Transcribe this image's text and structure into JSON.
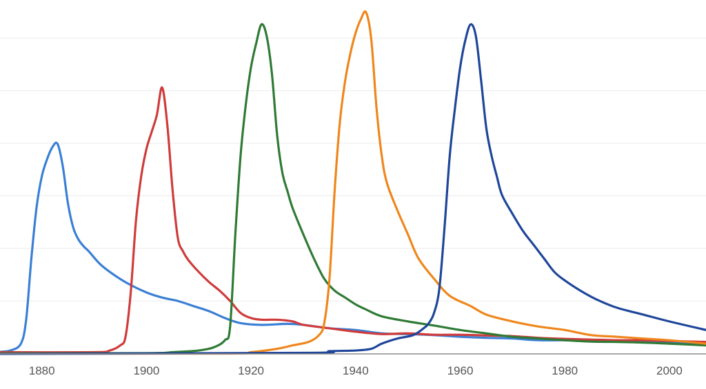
{
  "chart_data": {
    "type": "line",
    "title": "",
    "xlabel": "",
    "ylabel": "",
    "xlim": [
      1872,
      2007
    ],
    "ylim": [
      0,
      100
    ],
    "x_ticks": [
      1880,
      1900,
      1920,
      1940,
      1960,
      1980,
      2000
    ],
    "x_tick_labels": [
      "1880",
      "1900",
      "1920",
      "1940",
      "1960",
      "1980",
      "2000"
    ],
    "y_gridlines": [
      15.5,
      30.9,
      46.3,
      61.7,
      77.1,
      92.5
    ],
    "grid": true,
    "legend": "none",
    "series": [
      {
        "color": "#3a7fd5",
        "points": [
          [
            1872,
            0.6
          ],
          [
            1874,
            1.0
          ],
          [
            1876,
            3.0
          ],
          [
            1877,
            10.0
          ],
          [
            1878,
            28.0
          ],
          [
            1879,
            43.0
          ],
          [
            1880,
            52.0
          ],
          [
            1881,
            57.0
          ],
          [
            1882,
            60.5
          ],
          [
            1883,
            61.5
          ],
          [
            1884,
            55.0
          ],
          [
            1885,
            44.0
          ],
          [
            1886,
            37.0
          ],
          [
            1887,
            33.5
          ],
          [
            1888,
            31.5
          ],
          [
            1889,
            30.0
          ],
          [
            1891,
            26.5
          ],
          [
            1893,
            24.0
          ],
          [
            1896,
            21.0
          ],
          [
            1900,
            18.0
          ],
          [
            1903,
            16.5
          ],
          [
            1906,
            15.5
          ],
          [
            1909,
            14.0
          ],
          [
            1912,
            12.5
          ],
          [
            1915,
            10.5
          ],
          [
            1918,
            9.0
          ],
          [
            1922,
            8.5
          ],
          [
            1927,
            8.8
          ],
          [
            1930,
            8.5
          ],
          [
            1935,
            7.5
          ],
          [
            1940,
            7.0
          ],
          [
            1945,
            6.0
          ],
          [
            1950,
            5.8
          ],
          [
            1955,
            5.5
          ],
          [
            1960,
            5.0
          ],
          [
            1965,
            4.7
          ],
          [
            1970,
            4.5
          ],
          [
            1975,
            4.0
          ],
          [
            1980,
            4.0
          ],
          [
            1985,
            3.8
          ],
          [
            1990,
            3.7
          ],
          [
            1995,
            3.5
          ],
          [
            2000,
            3.3
          ],
          [
            2007,
            3.0
          ]
        ]
      },
      {
        "color": "#cf3b3b",
        "points": [
          [
            1872,
            0.5
          ],
          [
            1890,
            0.5
          ],
          [
            1893,
            1.0
          ],
          [
            1895,
            2.5
          ],
          [
            1896,
            5.0
          ],
          [
            1897,
            18.0
          ],
          [
            1898,
            39.0
          ],
          [
            1899,
            52.0
          ],
          [
            1900,
            60.0
          ],
          [
            1901,
            65.0
          ],
          [
            1902,
            70.0
          ],
          [
            1903,
            78.0
          ],
          [
            1904,
            67.0
          ],
          [
            1905,
            48.0
          ],
          [
            1906,
            34.0
          ],
          [
            1907,
            30.0
          ],
          [
            1908,
            27.5
          ],
          [
            1910,
            24.0
          ],
          [
            1912,
            21.0
          ],
          [
            1914,
            18.5
          ],
          [
            1916,
            15.5
          ],
          [
            1918,
            12.0
          ],
          [
            1920,
            10.5
          ],
          [
            1922,
            10.0
          ],
          [
            1925,
            10.0
          ],
          [
            1928,
            9.5
          ],
          [
            1930,
            8.5
          ],
          [
            1935,
            7.5
          ],
          [
            1940,
            6.5
          ],
          [
            1945,
            5.8
          ],
          [
            1950,
            6.0
          ],
          [
            1955,
            5.6
          ],
          [
            1960,
            5.6
          ],
          [
            1965,
            5.4
          ],
          [
            1970,
            5.2
          ],
          [
            1975,
            4.7
          ],
          [
            1980,
            4.4
          ],
          [
            1985,
            4.2
          ],
          [
            1990,
            4.0
          ],
          [
            1995,
            4.0
          ],
          [
            2000,
            3.8
          ],
          [
            2007,
            3.5
          ]
        ]
      },
      {
        "color": "#2f7a34",
        "points": [
          [
            1872,
            0.2
          ],
          [
            1900,
            0.2
          ],
          [
            1905,
            0.5
          ],
          [
            1910,
            1.0
          ],
          [
            1913,
            2.0
          ],
          [
            1915,
            4.0
          ],
          [
            1916,
            8.0
          ],
          [
            1917,
            35.0
          ],
          [
            1918,
            58.0
          ],
          [
            1919,
            73.0
          ],
          [
            1920,
            84.0
          ],
          [
            1921,
            91.0
          ],
          [
            1922,
            96.5
          ],
          [
            1923,
            93.0
          ],
          [
            1924,
            82.0
          ],
          [
            1925,
            64.0
          ],
          [
            1926,
            53.0
          ],
          [
            1927,
            47.5
          ],
          [
            1928,
            42.5
          ],
          [
            1930,
            35.0
          ],
          [
            1932,
            28.0
          ],
          [
            1934,
            22.0
          ],
          [
            1936,
            18.5
          ],
          [
            1938,
            16.5
          ],
          [
            1940,
            14.5
          ],
          [
            1942,
            13.0
          ],
          [
            1945,
            11.0
          ],
          [
            1950,
            9.5
          ],
          [
            1955,
            8.3
          ],
          [
            1960,
            7.0
          ],
          [
            1965,
            6.0
          ],
          [
            1970,
            5.0
          ],
          [
            1975,
            4.5
          ],
          [
            1980,
            4.0
          ],
          [
            1985,
            3.6
          ],
          [
            1990,
            3.5
          ],
          [
            1995,
            3.3
          ],
          [
            2000,
            3.0
          ],
          [
            2007,
            2.5
          ]
        ]
      },
      {
        "color": "#ef861c",
        "points": [
          [
            1872,
            0.1
          ],
          [
            1915,
            0.1
          ],
          [
            1920,
            0.5
          ],
          [
            1925,
            1.5
          ],
          [
            1928,
            2.5
          ],
          [
            1931,
            3.5
          ],
          [
            1933,
            5.5
          ],
          [
            1934,
            9.0
          ],
          [
            1935,
            22.0
          ],
          [
            1936,
            48.0
          ],
          [
            1937,
            68.0
          ],
          [
            1938,
            80.0
          ],
          [
            1939,
            88.0
          ],
          [
            1940,
            94.0
          ],
          [
            1941,
            98.0
          ],
          [
            1942,
            100.0
          ],
          [
            1943,
            92.0
          ],
          [
            1944,
            72.0
          ],
          [
            1945,
            58.0
          ],
          [
            1946,
            50.0
          ],
          [
            1948,
            42.0
          ],
          [
            1950,
            35.0
          ],
          [
            1952,
            28.0
          ],
          [
            1955,
            22.0
          ],
          [
            1958,
            17.0
          ],
          [
            1962,
            14.0
          ],
          [
            1965,
            11.5
          ],
          [
            1970,
            9.5
          ],
          [
            1975,
            8.0
          ],
          [
            1980,
            7.0
          ],
          [
            1985,
            5.5
          ],
          [
            1990,
            5.0
          ],
          [
            1995,
            4.5
          ],
          [
            2000,
            4.0
          ],
          [
            2007,
            3.0
          ]
        ]
      },
      {
        "color": "#1e4699",
        "points": [
          [
            1872,
            0.0
          ],
          [
            1930,
            0.3
          ],
          [
            1935,
            0.8
          ],
          [
            1940,
            1.0
          ],
          [
            1943,
            1.5
          ],
          [
            1945,
            3.0
          ],
          [
            1948,
            4.5
          ],
          [
            1951,
            5.5
          ],
          [
            1953,
            7.5
          ],
          [
            1954,
            9.0
          ],
          [
            1955,
            12.0
          ],
          [
            1956,
            19.0
          ],
          [
            1957,
            37.0
          ],
          [
            1958,
            58.0
          ],
          [
            1959,
            72.0
          ],
          [
            1960,
            84.0
          ],
          [
            1961,
            92.0
          ],
          [
            1962,
            96.5
          ],
          [
            1963,
            93.0
          ],
          [
            1964,
            80.0
          ],
          [
            1965,
            66.0
          ],
          [
            1966,
            58.0
          ],
          [
            1967,
            52.0
          ],
          [
            1968,
            46.5
          ],
          [
            1970,
            41.0
          ],
          [
            1972,
            36.0
          ],
          [
            1974,
            32.0
          ],
          [
            1976,
            28.0
          ],
          [
            1978,
            24.0
          ],
          [
            1980,
            21.5
          ],
          [
            1983,
            18.5
          ],
          [
            1986,
            16.0
          ],
          [
            1990,
            13.5
          ],
          [
            1995,
            11.5
          ],
          [
            2000,
            9.5
          ],
          [
            2007,
            7.0
          ]
        ]
      }
    ]
  }
}
